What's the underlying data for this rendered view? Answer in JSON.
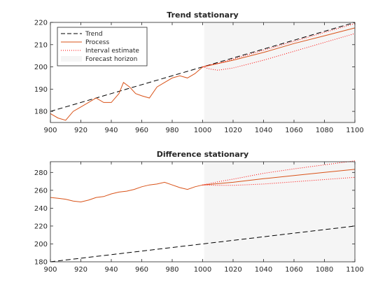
{
  "colors": {
    "trend": "#000000",
    "process": "#d95319",
    "interval": "#ff0000",
    "forecast_horizon": "#f5f5f5",
    "axis": "#262626"
  },
  "legend": {
    "placement": "top-left of first plot",
    "entries": [
      "Trend",
      "Process",
      "Interval estimate",
      "Forecast horizon"
    ]
  },
  "chart_data": [
    {
      "type": "line",
      "title": "Trend stationary",
      "xlabel": "",
      "ylabel": "",
      "xlim": [
        900,
        1100
      ],
      "ylim": [
        175,
        220
      ],
      "xticks": [
        900,
        920,
        940,
        960,
        980,
        1000,
        1020,
        1040,
        1060,
        1080,
        1100
      ],
      "yticks": [
        180,
        190,
        200,
        210,
        220
      ],
      "forecast_horizon": [
        1001,
        1100
      ],
      "grid": false,
      "series": [
        {
          "name": "Trend",
          "style": "dashed",
          "x": [
            900,
            1100
          ],
          "y": [
            180,
            220
          ]
        },
        {
          "name": "Process",
          "style": "solid",
          "x": [
            900,
            905,
            910,
            915,
            920,
            925,
            930,
            935,
            940,
            945,
            948,
            952,
            956,
            960,
            965,
            970,
            975,
            980,
            985,
            990,
            995,
            1000,
            1020,
            1040,
            1060,
            1080,
            1100
          ],
          "y": [
            179,
            177,
            176,
            180,
            182,
            184,
            186,
            184,
            184,
            188,
            193,
            191,
            188,
            187,
            186,
            191,
            193,
            195,
            196,
            195,
            197,
            200,
            203,
            206.5,
            210.5,
            214,
            217.5
          ]
        },
        {
          "name": "Interval estimate",
          "style": "dotted",
          "x": [
            1000,
            1005,
            1010,
            1020,
            1040,
            1060,
            1080,
            1100
          ],
          "y": [
            200,
            199,
            198.5,
            199.5,
            203,
            207,
            211,
            215
          ]
        },
        {
          "name": "Interval estimate upper",
          "style": "dotted",
          "x": [
            1000,
            1005,
            1010,
            1020,
            1040,
            1060,
            1080,
            1100
          ],
          "y": [
            200,
            201,
            201.5,
            203.5,
            207.5,
            211.5,
            215.5,
            219.5
          ]
        }
      ]
    },
    {
      "type": "line",
      "title": "Difference stationary",
      "xlabel": "",
      "ylabel": "",
      "xlim": [
        900,
        1100
      ],
      "ylim": [
        180,
        292
      ],
      "xticks": [
        900,
        920,
        940,
        960,
        980,
        1000,
        1020,
        1040,
        1060,
        1080,
        1100
      ],
      "yticks": [
        180,
        200,
        220,
        240,
        260,
        280
      ],
      "forecast_horizon": [
        1001,
        1100
      ],
      "grid": false,
      "series": [
        {
          "name": "Trend",
          "style": "dashed",
          "x": [
            900,
            1100
          ],
          "y": [
            180,
            220
          ]
        },
        {
          "name": "Process",
          "style": "solid",
          "x": [
            900,
            905,
            910,
            915,
            920,
            925,
            930,
            935,
            940,
            945,
            950,
            955,
            960,
            965,
            970,
            975,
            980,
            985,
            990,
            995,
            1000,
            1020,
            1040,
            1060,
            1080,
            1100
          ],
          "y": [
            252,
            251,
            250,
            248,
            247,
            249,
            252,
            253,
            256,
            258,
            259,
            261,
            264,
            266,
            267,
            269,
            266,
            263,
            261,
            264,
            266,
            269,
            273,
            276.5,
            280,
            283.5
          ]
        },
        {
          "name": "Interval estimate",
          "style": "dotted",
          "x": [
            1000,
            1010,
            1020,
            1040,
            1060,
            1080,
            1100
          ],
          "y": [
            266,
            265.5,
            265.5,
            267,
            269.5,
            272,
            274.5
          ]
        },
        {
          "name": "Interval estimate upper",
          "style": "dotted",
          "x": [
            1000,
            1010,
            1020,
            1040,
            1060,
            1080,
            1100
          ],
          "y": [
            266,
            269.5,
            272.5,
            279,
            284,
            288.5,
            293
          ]
        }
      ]
    }
  ]
}
